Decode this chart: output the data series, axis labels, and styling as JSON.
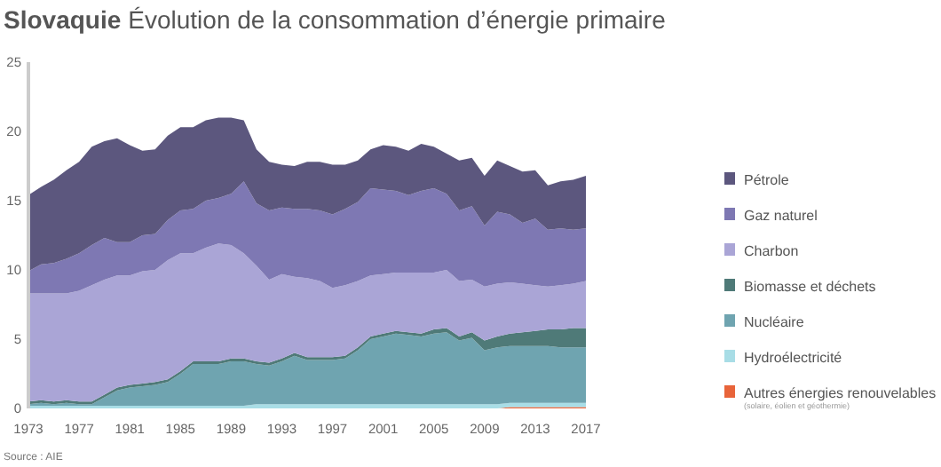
{
  "chart_data": {
    "type": "area",
    "stacked": true,
    "title": "Slovaquie",
    "subtitle": "Évolution de la consommation d’énergie primaire",
    "x": [
      1973,
      1974,
      1975,
      1976,
      1977,
      1978,
      1979,
      1980,
      1981,
      1982,
      1983,
      1984,
      1985,
      1986,
      1987,
      1988,
      1989,
      1990,
      1991,
      1992,
      1993,
      1994,
      1995,
      1996,
      1997,
      1998,
      1999,
      2000,
      2001,
      2002,
      2003,
      2004,
      2005,
      2006,
      2007,
      2008,
      2009,
      2010,
      2011,
      2012,
      2013,
      2014,
      2015,
      2016,
      2017
    ],
    "series": [
      {
        "name": "Autres énergies renouvelables",
        "color": "#e8643a",
        "values": [
          0,
          0,
          0,
          0,
          0,
          0,
          0,
          0,
          0,
          0,
          0,
          0,
          0,
          0,
          0,
          0,
          0,
          0,
          0,
          0,
          0,
          0,
          0,
          0,
          0,
          0,
          0,
          0,
          0,
          0,
          0,
          0,
          0,
          0,
          0,
          0,
          0,
          0,
          0.1,
          0.1,
          0.1,
          0.1,
          0.1,
          0.1,
          0.1
        ]
      },
      {
        "name": "Hydroélectricité",
        "color": "#a8dde6",
        "values": [
          0.2,
          0.2,
          0.2,
          0.2,
          0.2,
          0.2,
          0.2,
          0.2,
          0.2,
          0.2,
          0.2,
          0.2,
          0.2,
          0.2,
          0.2,
          0.2,
          0.2,
          0.2,
          0.3,
          0.3,
          0.3,
          0.3,
          0.3,
          0.3,
          0.3,
          0.3,
          0.3,
          0.3,
          0.3,
          0.3,
          0.3,
          0.3,
          0.3,
          0.3,
          0.3,
          0.3,
          0.3,
          0.3,
          0.3,
          0.3,
          0.3,
          0.3,
          0.3,
          0.3,
          0.3
        ]
      },
      {
        "name": "Nucléaire",
        "color": "#6fa4b0",
        "values": [
          0.1,
          0.2,
          0.1,
          0.2,
          0.1,
          0.1,
          0.6,
          1.1,
          1.3,
          1.4,
          1.5,
          1.7,
          2.3,
          3.0,
          3.0,
          3.0,
          3.2,
          3.2,
          2.9,
          2.8,
          3.1,
          3.5,
          3.2,
          3.2,
          3.2,
          3.3,
          3.9,
          4.7,
          4.9,
          5.1,
          5.0,
          4.9,
          5.1,
          5.2,
          4.6,
          4.8,
          3.9,
          4.1,
          4.1,
          4.1,
          4.1,
          4.1,
          4.0,
          4.0,
          4.0
        ]
      },
      {
        "name": "Biomasse et déchets",
        "color": "#4f7a78",
        "values": [
          0.2,
          0.2,
          0.2,
          0.2,
          0.2,
          0.2,
          0.2,
          0.2,
          0.2,
          0.2,
          0.2,
          0.2,
          0.2,
          0.2,
          0.2,
          0.2,
          0.2,
          0.2,
          0.2,
          0.2,
          0.2,
          0.2,
          0.2,
          0.2,
          0.2,
          0.2,
          0.2,
          0.2,
          0.2,
          0.2,
          0.2,
          0.2,
          0.3,
          0.3,
          0.3,
          0.4,
          0.7,
          0.8,
          0.9,
          1.0,
          1.1,
          1.2,
          1.3,
          1.4,
          1.4
        ]
      },
      {
        "name": "Charbon",
        "color": "#aaa5d6",
        "values": [
          7.8,
          7.7,
          7.8,
          7.7,
          8.0,
          8.4,
          8.3,
          8.1,
          7.9,
          8.1,
          8.1,
          8.6,
          8.5,
          7.8,
          8.2,
          8.5,
          8.2,
          7.6,
          6.9,
          6.0,
          6.1,
          5.5,
          5.7,
          5.5,
          5.0,
          5.1,
          4.8,
          4.4,
          4.3,
          4.2,
          4.3,
          4.4,
          4.1,
          4.2,
          4.0,
          3.8,
          3.9,
          3.8,
          3.7,
          3.5,
          3.3,
          3.1,
          3.2,
          3.2,
          3.4
        ]
      },
      {
        "name": "Gaz naturel",
        "color": "#7e78b3",
        "values": [
          1.6,
          2.1,
          2.2,
          2.5,
          2.7,
          2.9,
          3.0,
          2.4,
          2.4,
          2.6,
          2.6,
          2.9,
          3.1,
          3.2,
          3.4,
          3.3,
          3.7,
          5.2,
          4.5,
          5.0,
          4.8,
          4.9,
          5.0,
          5.1,
          5.3,
          5.5,
          5.7,
          6.3,
          6.1,
          5.9,
          5.6,
          5.9,
          6.1,
          5.5,
          5.1,
          5.3,
          4.4,
          5.2,
          4.9,
          4.4,
          4.8,
          4.1,
          4.1,
          3.9,
          3.8
        ]
      },
      {
        "name": "Pétrole",
        "color": "#5c577e",
        "values": [
          5.5,
          5.6,
          6.0,
          6.4,
          6.6,
          7.1,
          7.0,
          7.5,
          7.0,
          6.1,
          6.1,
          6.1,
          6.0,
          5.9,
          5.8,
          5.8,
          5.5,
          4.4,
          3.9,
          3.5,
          3.1,
          3.1,
          3.4,
          3.5,
          3.6,
          3.2,
          3.0,
          2.8,
          3.2,
          3.2,
          3.2,
          3.4,
          3.0,
          2.9,
          3.6,
          3.5,
          3.6,
          3.7,
          3.5,
          3.7,
          3.5,
          3.2,
          3.4,
          3.6,
          3.8
        ]
      }
    ],
    "xlim": [
      1973,
      2017
    ],
    "xticks": [
      1973,
      1977,
      1981,
      1985,
      1989,
      1993,
      1997,
      2001,
      2005,
      2009,
      2013,
      2017
    ],
    "ylim": [
      0,
      25
    ],
    "yticks": [
      0,
      5,
      10,
      15,
      20,
      25
    ],
    "grid": false,
    "legend": "right",
    "annotations": [
      "(solaire, éolien et géothermie)",
      "Source : AIE"
    ]
  }
}
